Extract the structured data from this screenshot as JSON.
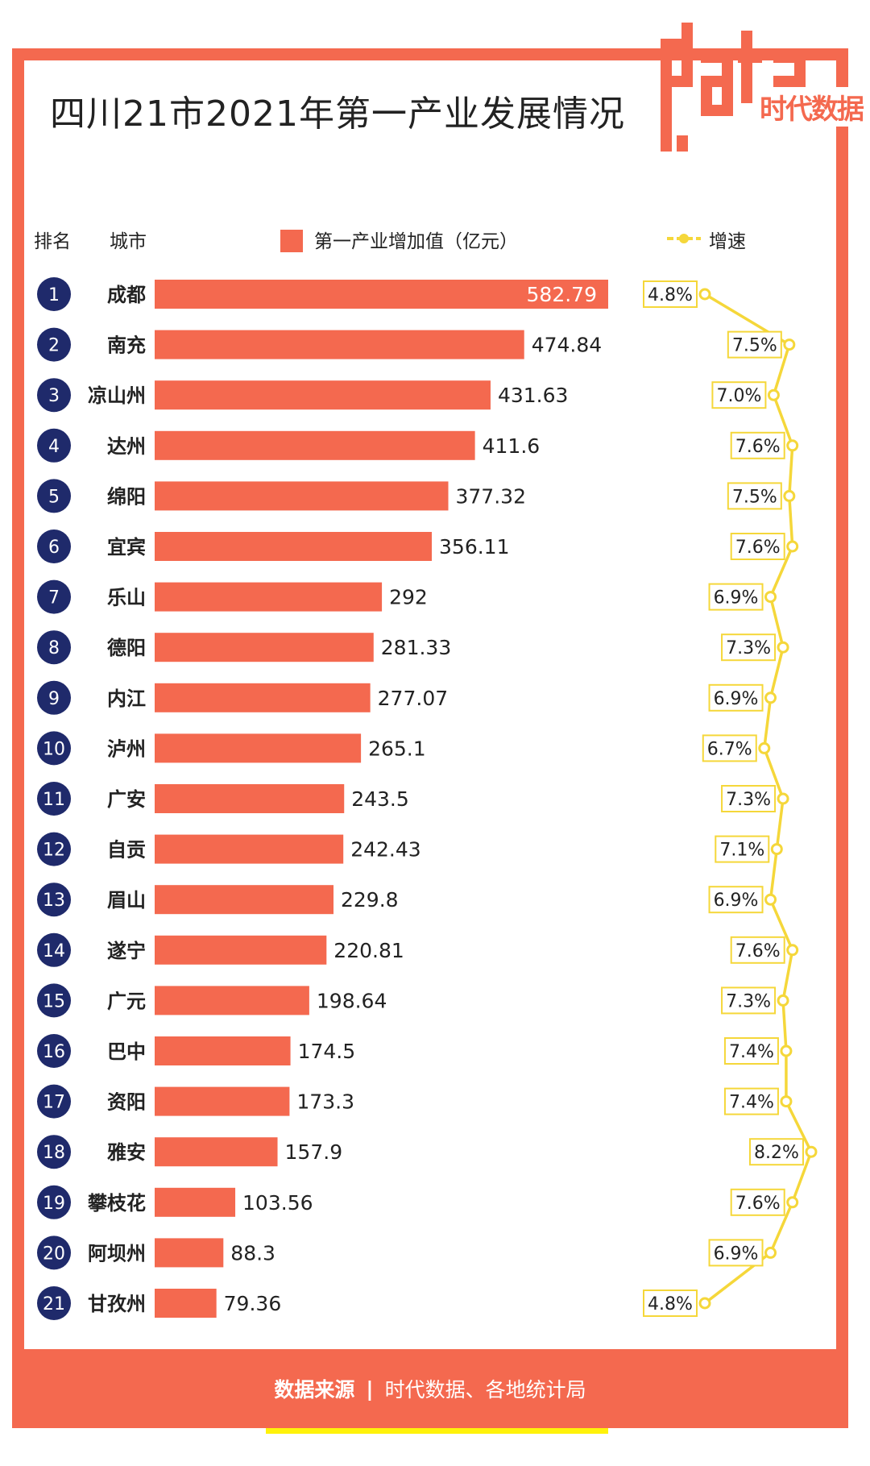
{
  "title": "四川21市2021年第一产业发展情况",
  "logo": {
    "text": "data",
    "stamp": "时代数据"
  },
  "headers": {
    "rank": "排名",
    "city": "城市",
    "legend_bar": "第一产业增加值（亿元）",
    "legend_line": "增速"
  },
  "colors": {
    "bar": "#f4694f",
    "line": "#f5d73a",
    "rank_circle": "#1f2a6b",
    "footer_stripe": "#fff20a"
  },
  "footer": {
    "label": "数据来源",
    "separator": "|",
    "text": "时代数据、各地统计局"
  },
  "chart_data": {
    "type": "bar",
    "title": "四川21市2021年第一产业发展情况",
    "categories": [
      "成都",
      "南充",
      "凉山州",
      "达州",
      "绵阳",
      "宜宾",
      "乐山",
      "德阳",
      "内江",
      "泸州",
      "广安",
      "自贡",
      "眉山",
      "遂宁",
      "广元",
      "巴中",
      "资阳",
      "雅安",
      "攀枝花",
      "阿坝州",
      "甘孜州"
    ],
    "ranks": [
      "1",
      "2",
      "3",
      "4",
      "5",
      "6",
      "7",
      "8",
      "9",
      "10",
      "11",
      "12",
      "13",
      "14",
      "15",
      "16",
      "17",
      "18",
      "19",
      "20",
      "21"
    ],
    "series": [
      {
        "name": "第一产业增加值（亿元）",
        "values": [
          582.79,
          474.84,
          431.63,
          411.6,
          377.32,
          356.11,
          292,
          281.33,
          277.07,
          265.1,
          243.5,
          242.43,
          229.8,
          220.81,
          198.64,
          174.5,
          173.3,
          157.9,
          103.56,
          88.3,
          79.36
        ]
      },
      {
        "name": "增速",
        "values": [
          4.8,
          7.5,
          7.0,
          7.6,
          7.5,
          7.6,
          6.9,
          7.3,
          6.9,
          6.7,
          7.3,
          7.1,
          6.9,
          7.6,
          7.3,
          7.4,
          7.4,
          8.2,
          7.6,
          6.9,
          4.8
        ]
      }
    ],
    "bar_labels": [
      "582.79",
      "474.84",
      "431.63",
      "411.6",
      "377.32",
      "356.11",
      "292",
      "281.33",
      "277.07",
      "265.1",
      "243.5",
      "242.43",
      "229.8",
      "220.81",
      "198.64",
      "174.5",
      "173.3",
      "157.9",
      "103.56",
      "88.3",
      "79.36"
    ],
    "growth_labels": [
      "4.8%",
      "7.5%",
      "7.0%",
      "7.6%",
      "7.5%",
      "7.6%",
      "6.9%",
      "7.3%",
      "6.9%",
      "6.7%",
      "7.3%",
      "7.1%",
      "6.9%",
      "7.6%",
      "7.3%",
      "7.4%",
      "7.4%",
      "8.2%",
      "7.6%",
      "6.9%",
      "4.8%"
    ],
    "xlim": [
      0,
      582.79
    ],
    "growth_range": [
      4.8,
      8.2
    ]
  }
}
